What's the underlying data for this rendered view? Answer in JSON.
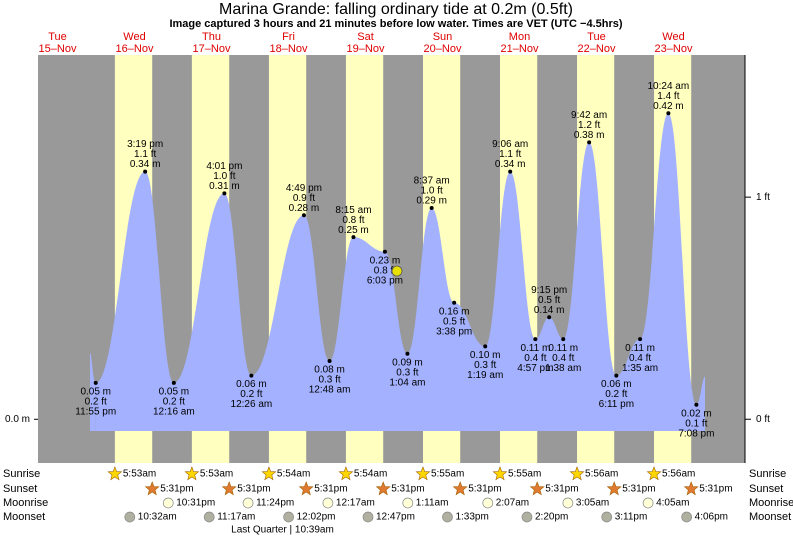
{
  "chart_data": {
    "type": "area",
    "title": "Marina Grande: falling  ordinary tide at 0.2m (0.5ft)",
    "subtitle": "Image captured 3 hours and 21 minutes before low water. Times are VET (UTC −4.5hrs)",
    "color": "#a3b1ff",
    "day_color": "#ffffc0",
    "night_color": "#999999",
    "ylim": [
      -0.06,
      0.5
    ],
    "yticks": [
      {
        "value": 0,
        "label": "0.0 m"
      }
    ],
    "y2lim": [
      -0.197,
      1.64
    ],
    "y2ticks": [
      {
        "value": 0,
        "label": "0 ft"
      },
      {
        "value": 1,
        "label": "1 ft"
      }
    ],
    "row_labels": [
      "Sunrise",
      "Sunset",
      "Moonrise",
      "Moonset"
    ],
    "days": [
      {
        "weekday": "Tue",
        "date": "15–Nov",
        "tides": [
          {
            "time": "11:55 pm",
            "m": {
              "value": 0.05,
              "label": "0.05 m"
            },
            "ft": {
              "value": 0.2,
              "label": "0.2 ft"
            }
          }
        ]
      },
      {
        "weekday": "Wed",
        "date": "16–Nov",
        "sunrise": "5:53am",
        "sunset": "5:31pm",
        "moonrise": "10:31pm",
        "moonset": "10:32am",
        "tides": [
          {
            "time": "3:19 pm",
            "m": {
              "value": 0.34,
              "label": "0.34 m"
            },
            "ft": {
              "value": 1.1,
              "label": "1.1 ft"
            }
          }
        ]
      },
      {
        "weekday": "Thu",
        "date": "17–Nov",
        "sunrise": "5:53am",
        "sunset": "5:31pm",
        "moonrise": "11:24pm",
        "moonset": "11:17am",
        "tides": [
          {
            "time": "12:16 am",
            "m": {
              "value": 0.05,
              "label": "0.05 m"
            },
            "ft": {
              "value": 0.2,
              "label": "0.2 ft"
            }
          },
          {
            "time": "4:01 pm",
            "m": {
              "value": 0.31,
              "label": "0.31 m"
            },
            "ft": {
              "value": 1.0,
              "label": "1.0 ft"
            }
          }
        ]
      },
      {
        "weekday": "Fri",
        "date": "18–Nov",
        "sunrise": "5:54am",
        "sunset": "5:31pm",
        "moonset": "12:02pm",
        "moon_phase": "Last Quarter | 10:39am",
        "tides": [
          {
            "time": "12:26 am",
            "m": {
              "value": 0.06,
              "label": "0.06 m"
            },
            "ft": {
              "value": 0.2,
              "label": "0.2 ft"
            }
          },
          {
            "time": "4:49 pm",
            "m": {
              "value": 0.28,
              "label": "0.28 m"
            },
            "ft": {
              "value": 0.9,
              "label": "0.9 ft"
            }
          }
        ]
      },
      {
        "weekday": "Sat",
        "date": "19–Nov",
        "sunrise": "5:54am",
        "sunset": "5:31pm",
        "moonrise": "12:17am",
        "moonset": "12:47pm",
        "tides": [
          {
            "time": "12:48 am",
            "m": {
              "value": 0.08,
              "label": "0.08 m"
            },
            "ft": {
              "value": 0.3,
              "label": "0.3 ft"
            }
          },
          {
            "time": "8:15 am",
            "m": {
              "value": 0.25,
              "label": "0.25 m"
            },
            "ft": {
              "value": 0.8,
              "label": "0.8 ft"
            }
          },
          {
            "time": "6:03 pm",
            "m": {
              "value": 0.23,
              "label": "0.23 m"
            },
            "ft": {
              "value": 0.8,
              "label": "0.8 ft"
            }
          }
        ]
      },
      {
        "weekday": "Sun",
        "date": "20–Nov",
        "sunrise": "5:55am",
        "sunset": "5:31pm",
        "moonrise": "1:11am",
        "moonset": "1:33pm",
        "tides": [
          {
            "time": "1:04 am",
            "m": {
              "value": 0.09,
              "label": "0.09 m"
            },
            "ft": {
              "value": 0.3,
              "label": "0.3 ft"
            }
          },
          {
            "time": "8:37 am",
            "m": {
              "value": 0.29,
              "label": "0.29 m"
            },
            "ft": {
              "value": 1.0,
              "label": "1.0 ft"
            }
          },
          {
            "time": "3:38 pm",
            "m": {
              "value": 0.16,
              "label": "0.16 m"
            },
            "ft": {
              "value": 0.5,
              "label": "0.5 ft"
            }
          }
        ]
      },
      {
        "weekday": "Mon",
        "date": "21–Nov",
        "sunrise": "5:55am",
        "sunset": "5:31pm",
        "moonrise": "2:07am",
        "moonset": "2:20pm",
        "tides": [
          {
            "time": "1:19 am",
            "m": {
              "value": 0.1,
              "label": "0.10 m"
            },
            "ft": {
              "value": 0.3,
              "label": "0.3 ft"
            }
          },
          {
            "time": "9:06 am",
            "m": {
              "value": 0.34,
              "label": "0.34 m"
            },
            "ft": {
              "value": 1.1,
              "label": "1.1 ft"
            }
          },
          {
            "time": "4:57 pm",
            "m": {
              "value": 0.11,
              "label": "0.11 m"
            },
            "ft": {
              "value": 0.4,
              "label": "0.4 ft"
            }
          },
          {
            "time": "9:15 pm",
            "m": {
              "value": 0.14,
              "label": "0.14 m"
            },
            "ft": {
              "value": 0.5,
              "label": "0.5 ft"
            }
          }
        ]
      },
      {
        "weekday": "Tue",
        "date": "22–Nov",
        "sunrise": "5:56am",
        "sunset": "5:31pm",
        "moonrise": "3:05am",
        "moonset": "3:11pm",
        "tides": [
          {
            "time": "1:38 am",
            "m": {
              "value": 0.11,
              "label": "0.11 m"
            },
            "ft": {
              "value": 0.4,
              "label": "0.4 ft"
            }
          },
          {
            "time": "9:42 am",
            "m": {
              "value": 0.38,
              "label": "0.38 m"
            },
            "ft": {
              "value": 1.2,
              "label": "1.2 ft"
            }
          },
          {
            "time": "6:11 pm",
            "m": {
              "value": 0.06,
              "label": "0.06 m"
            },
            "ft": {
              "value": 0.2,
              "label": "0.2 ft"
            }
          }
        ]
      },
      {
        "weekday": "Wed",
        "date": "23–Nov",
        "sunrise": "5:56am",
        "sunset": "5:31pm",
        "moonrise": "4:05am",
        "moonset": "4:06pm",
        "tides": [
          {
            "time": "1:35 am",
            "m": {
              "value": 0.11,
              "label": "0.11 m"
            },
            "ft": {
              "value": 0.4,
              "label": "0.4 ft"
            }
          },
          {
            "time": "10:24 am",
            "m": {
              "value": 0.42,
              "label": "0.42 m"
            },
            "ft": {
              "value": 1.4,
              "label": "1.4 ft"
            }
          },
          {
            "time": "7:08 pm",
            "m": {
              "value": 0.02,
              "label": "0.02 m"
            },
            "ft": {
              "value": 0.1,
              "label": "0.1 ft"
            }
          }
        ]
      }
    ]
  }
}
